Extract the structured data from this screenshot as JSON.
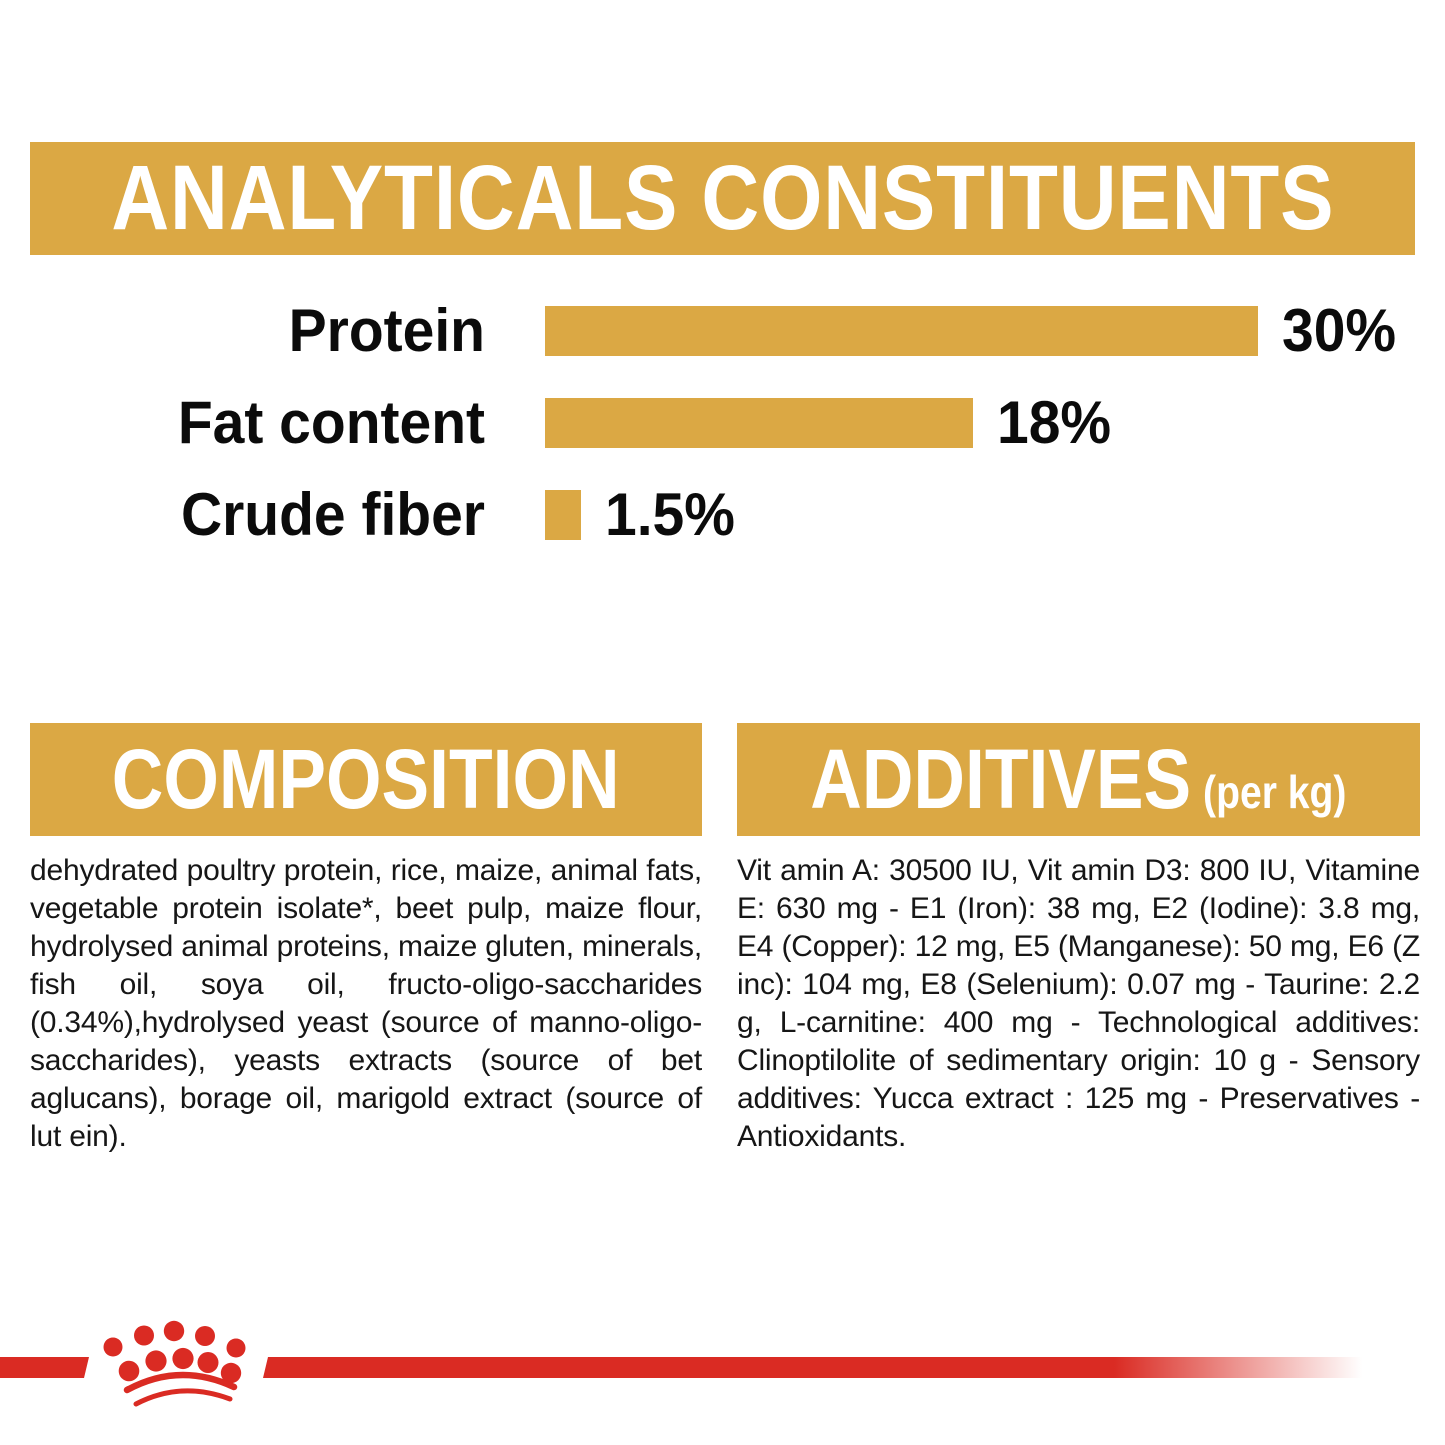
{
  "page": {
    "accent_gold": "#DBA844",
    "brand_red": "#DA2B23",
    "text_black": "#161616"
  },
  "header": {
    "title": "ANALYTICALS CONSTITUENTS"
  },
  "chart_data": {
    "type": "bar",
    "orientation": "horizontal",
    "categories": [
      "Protein",
      "Fat content",
      "Crude fiber"
    ],
    "values": [
      30,
      18,
      1.5
    ],
    "value_labels": [
      "30%",
      "18%",
      "1.5%"
    ],
    "unit": "%",
    "xlim": [
      0,
      30
    ],
    "bar_color": "#DBA844",
    "grid": false,
    "legend": false
  },
  "composition": {
    "heading": "COMPOSITION",
    "body": "dehydrated poultry protein, rice, maize, animal fats, vegetable protein isolate*, beet pulp, maize flour, hydrolysed animal proteins, maize gluten, minerals, fish oil, soya oil, fructo-oligo-saccharides (0.34%),hydrolysed yeast (source of manno-oligo-saccharides), yeasts extracts (source of bet aglucans), borage oil, marigold extract (source of lut ein)."
  },
  "additives": {
    "heading": "ADDITIVES",
    "heading_suffix": "(per kg)",
    "body": "Vit amin A: 30500 IU, Vit amin D3: 800 IU, Vitamine E: 630 mg - E1 (Iron): 38 mg, E2 (Iodine): 3.8 mg, E4 (Copper): 12 mg, E5 (Manganese): 50 mg, E6 (Z inc): 104 mg, E8 (Selenium): 0.07 mg - Taurine: 2.2 g, L-carnitine: 400 mg - Technological additives: Clinoptilolite of sedimentary origin: 10 g - Sensory additives: Yucca extract : 125 mg - Preservatives -Antioxidants."
  },
  "footer": {
    "logo_icon": "royal-canin-crown"
  }
}
